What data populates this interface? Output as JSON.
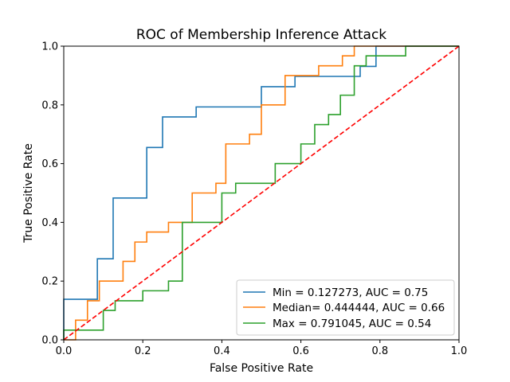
{
  "chart_data": {
    "type": "line",
    "title": "ROC of Membership Inference Attack",
    "xlabel": "False Positive Rate",
    "ylabel": "True Positive Rate",
    "xlim": [
      0,
      1
    ],
    "ylim": [
      0,
      1
    ],
    "xticks": [
      "0.0",
      "0.2",
      "0.4",
      "0.6",
      "0.8",
      "1.0"
    ],
    "yticks": [
      "0.0",
      "0.2",
      "0.4",
      "0.6",
      "0.8",
      "1.0"
    ],
    "grid": false,
    "legend_position": "lower-right",
    "series": [
      {
        "name": "Min = 0.127273, AUC = 0.75",
        "color": "#1f77b4",
        "step": true,
        "x": [
          0.0,
          0.0,
          0.085,
          0.085,
          0.125,
          0.125,
          0.21,
          0.21,
          0.25,
          0.25,
          0.335,
          0.335,
          0.5,
          0.5,
          0.585,
          0.585,
          0.75,
          0.75,
          0.79,
          0.79,
          0.835,
          0.875,
          1.0
        ],
        "y": [
          0.0,
          0.138,
          0.138,
          0.276,
          0.276,
          0.483,
          0.483,
          0.655,
          0.655,
          0.759,
          0.759,
          0.793,
          0.793,
          0.862,
          0.862,
          0.897,
          0.897,
          0.931,
          0.931,
          1.0,
          1.0,
          1.0,
          1.0
        ]
      },
      {
        "name": "Median= 0.444444, AUC = 0.66",
        "color": "#ff7f0e",
        "step": true,
        "x": [
          0.0,
          0.03,
          0.03,
          0.06,
          0.06,
          0.09,
          0.09,
          0.15,
          0.15,
          0.18,
          0.18,
          0.21,
          0.21,
          0.265,
          0.265,
          0.325,
          0.325,
          0.385,
          0.385,
          0.41,
          0.41,
          0.47,
          0.47,
          0.5,
          0.5,
          0.56,
          0.56,
          0.645,
          0.645,
          0.705,
          0.705,
          0.735,
          0.735,
          1.0
        ],
        "y": [
          0.0,
          0.0,
          0.067,
          0.067,
          0.133,
          0.133,
          0.2,
          0.2,
          0.267,
          0.267,
          0.333,
          0.333,
          0.367,
          0.367,
          0.4,
          0.4,
          0.5,
          0.5,
          0.533,
          0.533,
          0.667,
          0.667,
          0.7,
          0.7,
          0.8,
          0.8,
          0.9,
          0.9,
          0.933,
          0.933,
          0.967,
          0.967,
          1.0,
          1.0
        ]
      },
      {
        "name": "Max = 0.791045, AUC = 0.54",
        "color": "#2ca02c",
        "step": true,
        "x": [
          0.0,
          0.0,
          0.1,
          0.1,
          0.13,
          0.13,
          0.2,
          0.2,
          0.265,
          0.265,
          0.3,
          0.3,
          0.4,
          0.4,
          0.435,
          0.435,
          0.535,
          0.535,
          0.6,
          0.6,
          0.635,
          0.635,
          0.67,
          0.67,
          0.7,
          0.7,
          0.735,
          0.735,
          0.765,
          0.765,
          0.865,
          0.865,
          1.0
        ],
        "y": [
          0.0,
          0.033,
          0.033,
          0.1,
          0.1,
          0.133,
          0.133,
          0.167,
          0.167,
          0.2,
          0.2,
          0.4,
          0.4,
          0.5,
          0.5,
          0.533,
          0.533,
          0.6,
          0.6,
          0.667,
          0.667,
          0.733,
          0.733,
          0.767,
          0.767,
          0.833,
          0.833,
          0.933,
          0.933,
          0.967,
          0.967,
          1.0,
          1.0
        ]
      }
    ],
    "reference_line": {
      "color": "#ff0000",
      "style": "dashed",
      "x": [
        0,
        1
      ],
      "y": [
        0,
        1
      ]
    }
  }
}
